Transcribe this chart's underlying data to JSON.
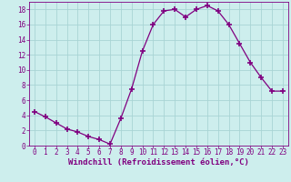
{
  "x": [
    0,
    1,
    2,
    3,
    4,
    5,
    6,
    7,
    8,
    9,
    10,
    11,
    12,
    13,
    14,
    15,
    16,
    17,
    18,
    19,
    20,
    21,
    22,
    23
  ],
  "y": [
    4.5,
    3.8,
    3.0,
    2.2,
    1.8,
    1.2,
    0.8,
    0.2,
    3.6,
    7.5,
    12.5,
    16.0,
    17.8,
    18.0,
    17.0,
    18.0,
    18.5,
    17.8,
    16.0,
    13.5,
    11.0,
    9.0,
    7.2,
    7.2
  ],
  "line_color": "#800080",
  "marker": "+",
  "marker_size": 4,
  "marker_lw": 1.2,
  "bg_color": "#cdeeed",
  "grid_color": "#a8d4d4",
  "xlabel": "Windchill (Refroidissement éolien,°C)",
  "xlim": [
    -0.5,
    23.5
  ],
  "ylim": [
    0,
    19
  ],
  "yticks": [
    0,
    2,
    4,
    6,
    8,
    10,
    12,
    14,
    16,
    18
  ],
  "xticks": [
    0,
    1,
    2,
    3,
    4,
    5,
    6,
    7,
    8,
    9,
    10,
    11,
    12,
    13,
    14,
    15,
    16,
    17,
    18,
    19,
    20,
    21,
    22,
    23
  ],
  "xlabel_fontsize": 6.5,
  "tick_fontsize": 5.5
}
